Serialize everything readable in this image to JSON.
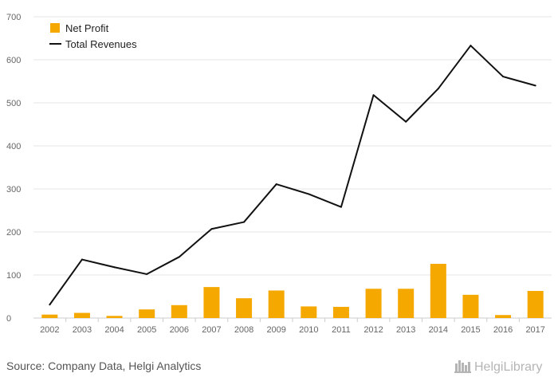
{
  "chart_data": {
    "type": "bar",
    "categories": [
      "2002",
      "2003",
      "2004",
      "2005",
      "2006",
      "2007",
      "2008",
      "2009",
      "2010",
      "2011",
      "2012",
      "2013",
      "2014",
      "2015",
      "2016",
      "2017"
    ],
    "series": [
      {
        "name": "Net Profit",
        "type": "bar",
        "color": "#f5a800",
        "values": [
          8,
          12,
          5,
          20,
          30,
          72,
          46,
          64,
          27,
          26,
          68,
          68,
          126,
          54,
          7,
          63
        ]
      },
      {
        "name": "Total Revenues",
        "type": "line",
        "color": "#111111",
        "values": [
          31,
          136,
          118,
          102,
          142,
          207,
          223,
          311,
          288,
          258,
          518,
          456,
          533,
          633,
          561,
          540
        ]
      }
    ],
    "ylim": [
      0,
      700
    ],
    "yticks": [
      0,
      100,
      200,
      300,
      400,
      500,
      600,
      700
    ],
    "grid": true,
    "legend_position": "top-left"
  },
  "footer": {
    "source": "Source: Company Data, Helgi Analytics",
    "brand": "HelgiLibrary"
  }
}
